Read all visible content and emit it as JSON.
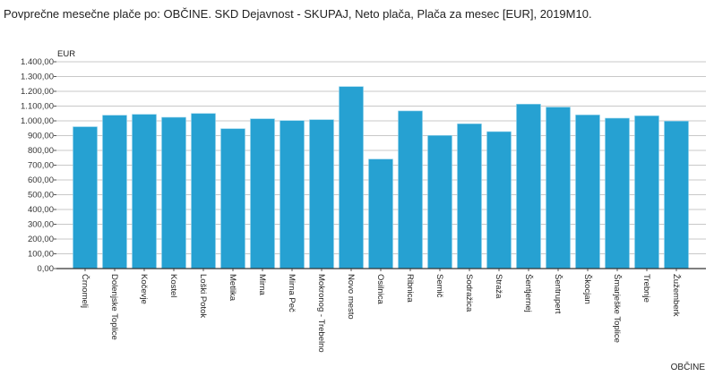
{
  "chart_data": {
    "type": "bar",
    "title": "Povprečne mesečne plače po: OBČINE. SKD Dejavnost - SKUPAJ, Neto plača, Plača za mesec [EUR], 2019M10.",
    "xlabel": "OBČINE",
    "ylabel": "EUR",
    "ylim": [
      0,
      1400
    ],
    "yticks": [
      "0,00",
      "100,00",
      "200,00",
      "300,00",
      "400,00",
      "500,00",
      "600,00",
      "700,00",
      "800,00",
      "900,00",
      "1.000,00",
      "1.100,00",
      "1.200,00",
      "1.300,00",
      "1.400,00"
    ],
    "grid": true,
    "bar_color": "#26a1d2",
    "categories": [
      "Črnomelj",
      "Dolenjske Toplice",
      "Kočevje",
      "Kostel",
      "Loški Potok",
      "Metlika",
      "Mirna",
      "Mirna Peč",
      "Mokronog - Trebelno",
      "Novo mesto",
      "Osilnica",
      "Ribnica",
      "Semič",
      "Sodražica",
      "Straža",
      "Šentjernej",
      "Šentrupert",
      "Škocjan",
      "Šmarješke Toplice",
      "Trebnje",
      "Žužemberk"
    ],
    "values": [
      960,
      1038,
      1044,
      1024,
      1050,
      947,
      1014,
      1002,
      1008,
      1232,
      741,
      1067,
      901,
      980,
      927,
      1113,
      1093,
      1040,
      1018,
      1034,
      998
    ]
  }
}
